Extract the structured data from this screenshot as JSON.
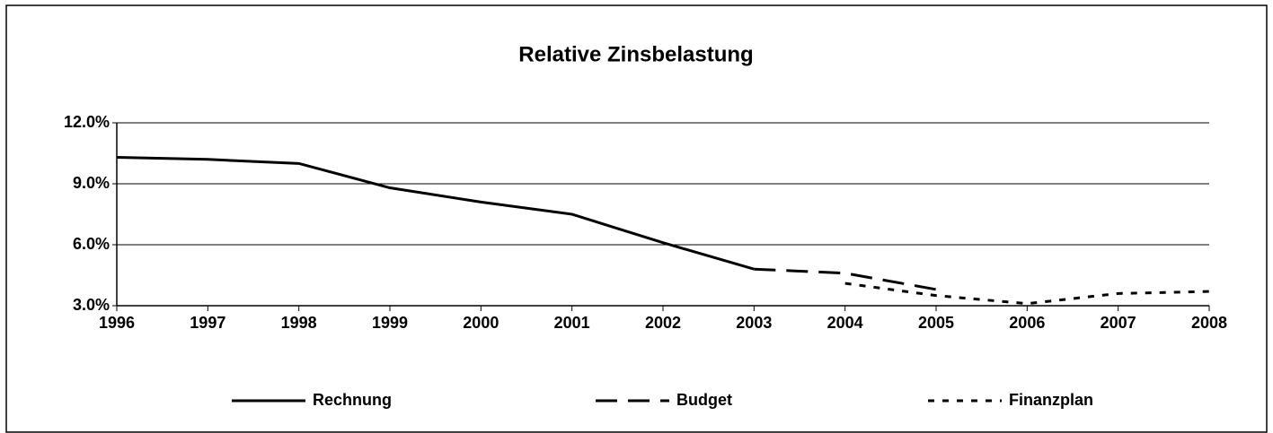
{
  "chart_data": {
    "type": "line",
    "title": "Relative Zinsbelastung",
    "x": [
      1996,
      1997,
      1998,
      1999,
      2000,
      2001,
      2002,
      2003,
      2004,
      2005,
      2006,
      2007,
      2008
    ],
    "xlim": [
      1996,
      2008
    ],
    "xticks": [
      1996,
      1997,
      1998,
      1999,
      2000,
      2001,
      2002,
      2003,
      2004,
      2005,
      2006,
      2007,
      2008
    ],
    "ylim": [
      3,
      12
    ],
    "yticks": [
      {
        "value": 3,
        "label": "3.0%"
      },
      {
        "value": 6,
        "label": "6.0%"
      },
      {
        "value": 9,
        "label": "9.0%"
      },
      {
        "value": 12,
        "label": "12.0%"
      }
    ],
    "grid": true,
    "legend": "bottom",
    "series": [
      {
        "name": "Rechnung",
        "color": "#000000",
        "style": "solid",
        "values": [
          10.3,
          10.2,
          10.0,
          8.8,
          8.1,
          7.5,
          6.1,
          4.8,
          null,
          null,
          null,
          null,
          null
        ]
      },
      {
        "name": "Budget",
        "color": "#000000",
        "style": "dashed",
        "values": [
          null,
          null,
          null,
          null,
          null,
          null,
          null,
          4.8,
          4.6,
          3.8,
          null,
          null,
          null
        ]
      },
      {
        "name": "Finanzplan",
        "color": "#000000",
        "style": "dotted",
        "values": [
          null,
          null,
          null,
          null,
          null,
          null,
          null,
          null,
          4.1,
          3.5,
          3.1,
          3.6,
          3.7
        ]
      }
    ]
  }
}
